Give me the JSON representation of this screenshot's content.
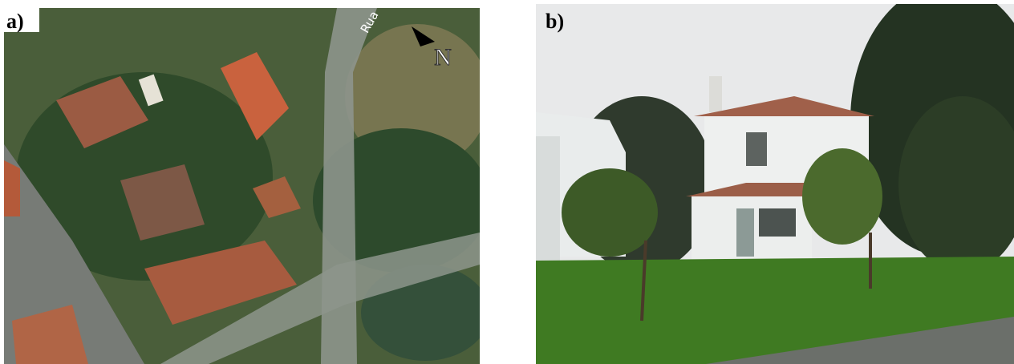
{
  "panels": [
    {
      "label": "a)",
      "annotations": [
        "Rua",
        "N"
      ]
    },
    {
      "label": "b)"
    }
  ]
}
